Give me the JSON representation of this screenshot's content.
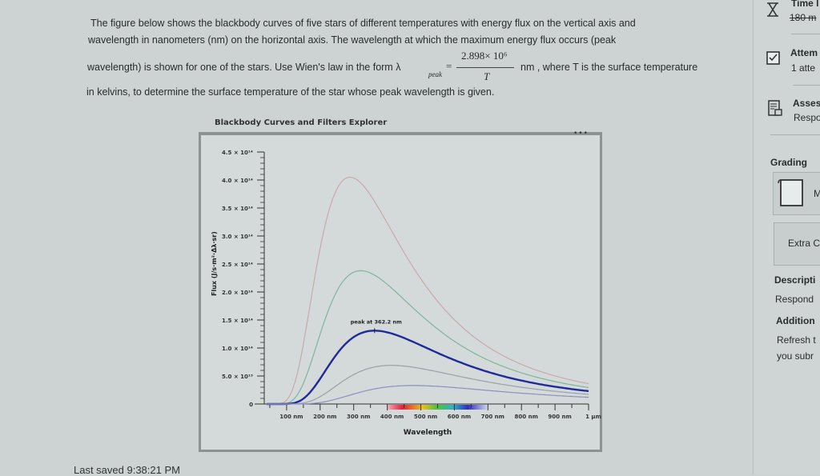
{
  "question": {
    "line1": "The figure below shows the blackbody curves of five stars of different temperatures with energy flux on the vertical axis and",
    "line2": "wavelength in nanometers (nm) on the horizontal axis. The wavelength at which the maximum energy flux occurs (peak",
    "line3a": "wavelength) is shown for one of the stars. Use Wien's law in the form λ",
    "lambda_sub": "peak",
    "equals": "=",
    "numerator": "2.898× 10⁶",
    "denominator": "T",
    "line3b": "nm , where T is the surface temperature",
    "line4": "in kelvins, to determine the surface temperature of the star whose peak wavelength is given."
  },
  "sidebar": {
    "time_label": "Time l",
    "time_value": "180 m",
    "attempts_label": "Attem",
    "attempts_value": "1 atte",
    "assessment_label": "Asses",
    "assessment_value": "Respo",
    "grading_label": "Grading",
    "grading_item": "M",
    "extra_button": "Extra C",
    "description_label": "Descripti",
    "description_value": "Respond",
    "additional_label": "Addition",
    "additional_line1": "Refresh t",
    "additional_line2": "you subr"
  },
  "footer": {
    "last_saved": "Last saved 9:38:21 PM"
  },
  "chart_data": {
    "type": "line",
    "title": "Blackbody Curves and Filters Explorer",
    "menu": "•••",
    "xlabel": "Wavelength",
    "ylabel": "Flux (J/s·m²·Δλ·sr)",
    "xlim": [
      0,
      1000
    ],
    "ylim": [
      0,
      450000000000000.0
    ],
    "x_unit": "nm",
    "x_ticks": [
      {
        "value": 100,
        "label": "100 nm"
      },
      {
        "value": 200,
        "label": "200 nm"
      },
      {
        "value": 300,
        "label": "300 nm"
      },
      {
        "value": 400,
        "label": "400 nm"
      },
      {
        "value": 500,
        "label": "500 nm"
      },
      {
        "value": 600,
        "label": "600 nm"
      },
      {
        "value": 700,
        "label": "700 nm"
      },
      {
        "value": 800,
        "label": "800 nm"
      },
      {
        "value": 900,
        "label": "900 nm"
      },
      {
        "value": 1000,
        "label": "1 µm"
      }
    ],
    "y_ticks": [
      {
        "value": 0,
        "label": "0"
      },
      {
        "value": 50000000000000.0,
        "label": "5.0 × 10¹³"
      },
      {
        "value": 100000000000000.0,
        "label": "1.0 × 10¹⁴"
      },
      {
        "value": 150000000000000.0,
        "label": "1.5 × 10¹⁴"
      },
      {
        "value": 200000000000000.0,
        "label": "2.0 × 10¹⁴"
      },
      {
        "value": 250000000000000.0,
        "label": "2.5 × 10¹⁴"
      },
      {
        "value": 300000000000000.0,
        "label": "3.0 × 10¹⁴"
      },
      {
        "value": 350000000000000.0,
        "label": "3.5 × 10¹⁴"
      },
      {
        "value": 400000000000000.0,
        "label": "4.0 × 10¹⁴"
      },
      {
        "value": 450000000000000.0,
        "label": "4.5 × 10¹⁴"
      }
    ],
    "series": [
      {
        "peak_nm": 289,
        "peak_flux": 405000000000000.0,
        "color": "#c9a9a9",
        "highlight": false
      },
      {
        "peak_nm": 321,
        "peak_flux": 238000000000000.0,
        "color": "#7fb59a",
        "highlight": false
      },
      {
        "peak_nm": 362.2,
        "peak_flux": 131000000000000.0,
        "color": "#1f2a9c",
        "highlight": true
      },
      {
        "peak_nm": 412,
        "peak_flux": 69000000000000.0,
        "color": "#9aa0a8",
        "highlight": false
      },
      {
        "peak_nm": 477,
        "peak_flux": 33000000000000.0,
        "color": "#8a8fc0",
        "highlight": false
      }
    ],
    "annotation": "peak at 362.2 nm",
    "visible_spectrum_band": [
      400,
      700
    ],
    "grid": false,
    "legend": "none"
  }
}
